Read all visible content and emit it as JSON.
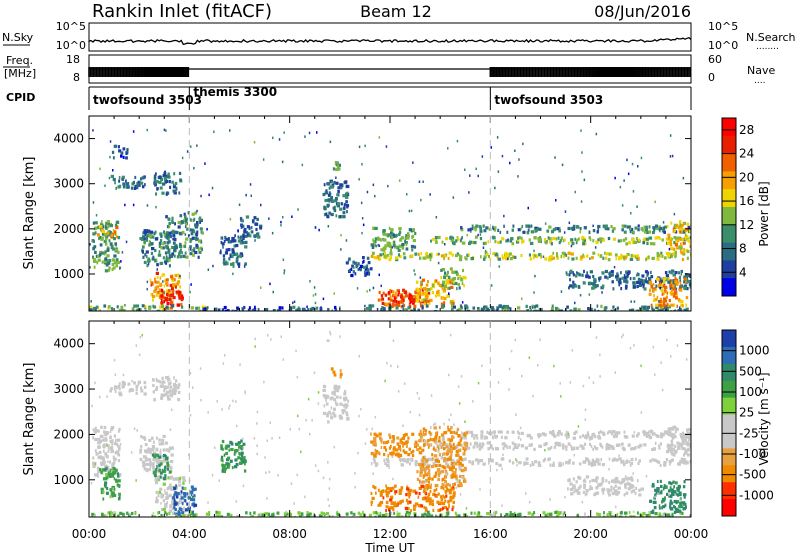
{
  "header": {
    "station": "Rankin Inlet (fitACF)",
    "beam": "Beam 12",
    "date": "08/Jun/2016"
  },
  "strip_labels": {
    "nsky": "N.Sky",
    "nsearch": "N.Search",
    "nsearch_dots": "........",
    "freq_line1": "Freq.",
    "freq_line2": "[MHz]",
    "nave": "Nave",
    "nave_dots": "....",
    "cpid": "CPID"
  },
  "strip_ticks": {
    "noise_left": [
      "10^5",
      "10^0"
    ],
    "noise_right": [
      "10^5",
      "10^0"
    ],
    "freq_left": [
      "18",
      "8"
    ],
    "nave_right": [
      "60",
      "0"
    ]
  },
  "cpid_segments": [
    {
      "name": "twofsound 3503",
      "start_h": 0,
      "end_h": 4
    },
    {
      "name": "themis 3300",
      "start_h": 4,
      "end_h": 16
    },
    {
      "name": "twofsound 3503",
      "start_h": 16,
      "end_h": 24
    }
  ],
  "chart_data": [
    {
      "type": "heatmap",
      "panel": "power",
      "xlabel": "Time UT",
      "ylabel": "Slant Range [km]",
      "x_range_hours": [
        0,
        24
      ],
      "ylim": [
        180,
        4500
      ],
      "xticks": [
        "00:00",
        "04:00",
        "08:00",
        "12:00",
        "16:00",
        "20:00",
        "00:00"
      ],
      "yticks": [
        1000,
        2000,
        3000,
        4000
      ],
      "colorbar": {
        "label": "Power [dB]",
        "ticks": [
          4,
          8,
          12,
          16,
          20,
          24,
          28
        ],
        "colors": [
          "#0000e6",
          "#1e3fa0",
          "#2a6d82",
          "#3a8f6a",
          "#7fb83c",
          "#f0d400",
          "#f5a000",
          "#f06000",
          "#e82000",
          "#ff0000"
        ]
      },
      "regions": [
        {
          "t": [
            0.1,
            1.2
          ],
          "r": [
            1100,
            2200
          ],
          "level": 12
        },
        {
          "t": [
            0.3,
            1.1
          ],
          "r": [
            1850,
            2100
          ],
          "level": 20
        },
        {
          "t": [
            0.8,
            2.2
          ],
          "r": [
            2900,
            3200
          ],
          "level": 8
        },
        {
          "t": [
            0.9,
            1.5
          ],
          "r": [
            3600,
            3900
          ],
          "level": 6
        },
        {
          "t": [
            2.0,
            3.3
          ],
          "r": [
            1200,
            2000
          ],
          "level": 10
        },
        {
          "t": [
            2.5,
            3.6
          ],
          "r": [
            2800,
            3300
          ],
          "level": 8
        },
        {
          "t": [
            2.4,
            3.6
          ],
          "r": [
            450,
            1050
          ],
          "level": 22
        },
        {
          "t": [
            2.8,
            3.7
          ],
          "r": [
            250,
            750
          ],
          "level": 28
        },
        {
          "t": [
            3.0,
            4.5
          ],
          "r": [
            1400,
            2400
          ],
          "level": 10
        },
        {
          "t": [
            0.0,
            4.8
          ],
          "r": [
            200,
            330
          ],
          "level": 14
        },
        {
          "t": [
            5.2,
            6.2
          ],
          "r": [
            1200,
            1900
          ],
          "level": 8
        },
        {
          "t": [
            6.0,
            6.8
          ],
          "r": [
            1850,
            2300
          ],
          "level": 8
        },
        {
          "t": [
            4.5,
            10.0
          ],
          "r": [
            200,
            300
          ],
          "level": 6
        },
        {
          "t": [
            9.3,
            10.3
          ],
          "r": [
            2300,
            3100
          ],
          "level": 8
        },
        {
          "t": [
            9.6,
            10.0
          ],
          "r": [
            3300,
            3500
          ],
          "level": 12
        },
        {
          "t": [
            10.2,
            11.2
          ],
          "r": [
            1000,
            1400
          ],
          "level": 6
        },
        {
          "t": [
            11.2,
            13.0
          ],
          "r": [
            1550,
            2050
          ],
          "level": 12
        },
        {
          "t": [
            11.2,
            24.0
          ],
          "r": [
            1350,
            1500
          ],
          "level": 16
        },
        {
          "t": [
            13.5,
            24.0
          ],
          "r": [
            1700,
            1850
          ],
          "level": 14
        },
        {
          "t": [
            14.5,
            24.0
          ],
          "r": [
            1950,
            2100
          ],
          "level": 10
        },
        {
          "t": [
            11.5,
            13.5
          ],
          "r": [
            300,
            700
          ],
          "level": 26
        },
        {
          "t": [
            12.0,
            13.0
          ],
          "r": [
            400,
            650
          ],
          "level": 30
        },
        {
          "t": [
            13.0,
            14.5
          ],
          "r": [
            350,
            900
          ],
          "level": 20
        },
        {
          "t": [
            14.0,
            15.0
          ],
          "r": [
            700,
            1150
          ],
          "level": 14
        },
        {
          "t": [
            11.0,
            24.0
          ],
          "r": [
            200,
            330
          ],
          "level": 10
        },
        {
          "t": [
            19.0,
            24.0
          ],
          "r": [
            700,
            1100
          ],
          "level": 8
        },
        {
          "t": [
            22.3,
            23.8
          ],
          "r": [
            300,
            950
          ],
          "level": 22
        },
        {
          "t": [
            23.0,
            24.0
          ],
          "r": [
            1500,
            2200
          ],
          "level": 20
        }
      ]
    },
    {
      "type": "heatmap",
      "panel": "velocity",
      "xlabel": "Time UT",
      "ylabel": "Slant Range [km]",
      "x_range_hours": [
        0,
        24
      ],
      "ylim": [
        180,
        4500
      ],
      "xticks": [
        "00:00",
        "04:00",
        "08:00",
        "12:00",
        "16:00",
        "20:00",
        "00:00"
      ],
      "yticks": [
        1000,
        2000,
        3000,
        4000
      ],
      "colorbar": {
        "label": "Velocity [m s⁻¹]",
        "ticks": [
          "1000",
          "500",
          "100",
          "25",
          "-25",
          "-100",
          "-500",
          "-1000"
        ],
        "colors": [
          "#1c3fa8",
          "#2e6cb5",
          "#2f8a6a",
          "#3da045",
          "#7fd13b",
          "#c8c8c8",
          "#c8c8c8",
          "#e8a040",
          "#f08a00",
          "#ff3000",
          "#ff0000"
        ]
      },
      "regions": [
        {
          "t": [
            0.1,
            1.2
          ],
          "r": [
            1100,
            2200
          ],
          "v": 0
        },
        {
          "t": [
            0.4,
            1.2
          ],
          "r": [
            600,
            1300
          ],
          "v": 120
        },
        {
          "t": [
            0.8,
            2.2
          ],
          "r": [
            2900,
            3200
          ],
          "v": 0
        },
        {
          "t": [
            2.0,
            3.3
          ],
          "r": [
            1200,
            2000
          ],
          "v": 0
        },
        {
          "t": [
            2.5,
            3.6
          ],
          "r": [
            2800,
            3300
          ],
          "v": 0
        },
        {
          "t": [
            2.6,
            3.8
          ],
          "r": [
            300,
            1100
          ],
          "v": 10
        },
        {
          "t": [
            3.3,
            4.2
          ],
          "r": [
            250,
            900
          ],
          "v": 600
        },
        {
          "t": [
            2.5,
            3.2
          ],
          "r": [
            1050,
            1600
          ],
          "v": 150
        },
        {
          "t": [
            0.0,
            6.0
          ],
          "r": [
            200,
            320
          ],
          "v": 60
        },
        {
          "t": [
            5.2,
            6.2
          ],
          "r": [
            1200,
            1900
          ],
          "v": 150
        },
        {
          "t": [
            9.3,
            10.3
          ],
          "r": [
            2300,
            3100
          ],
          "v": 0
        },
        {
          "t": [
            9.6,
            10.0
          ],
          "r": [
            3300,
            3500
          ],
          "v": -200
        },
        {
          "t": [
            11.2,
            13.0
          ],
          "r": [
            1550,
            2050
          ],
          "v": -200
        },
        {
          "t": [
            11.2,
            24.0
          ],
          "r": [
            1350,
            1500
          ],
          "v": 0
        },
        {
          "t": [
            13.5,
            24.0
          ],
          "r": [
            1700,
            1850
          ],
          "v": 0
        },
        {
          "t": [
            14.5,
            24.0
          ],
          "r": [
            1950,
            2100
          ],
          "v": 0
        },
        {
          "t": [
            11.2,
            14.5
          ],
          "r": [
            350,
            900
          ],
          "v": -300
        },
        {
          "t": [
            13.0,
            15.0
          ],
          "r": [
            900,
            2200
          ],
          "v": -150
        },
        {
          "t": [
            6.0,
            24.0
          ],
          "r": [
            200,
            320
          ],
          "v": 60
        },
        {
          "t": [
            19.0,
            22.0
          ],
          "r": [
            700,
            1100
          ],
          "v": 0
        },
        {
          "t": [
            22.3,
            23.8
          ],
          "r": [
            300,
            1000
          ],
          "v": 250
        },
        {
          "t": [
            23.0,
            24.0
          ],
          "r": [
            1500,
            2200
          ],
          "v": 0
        }
      ]
    }
  ]
}
